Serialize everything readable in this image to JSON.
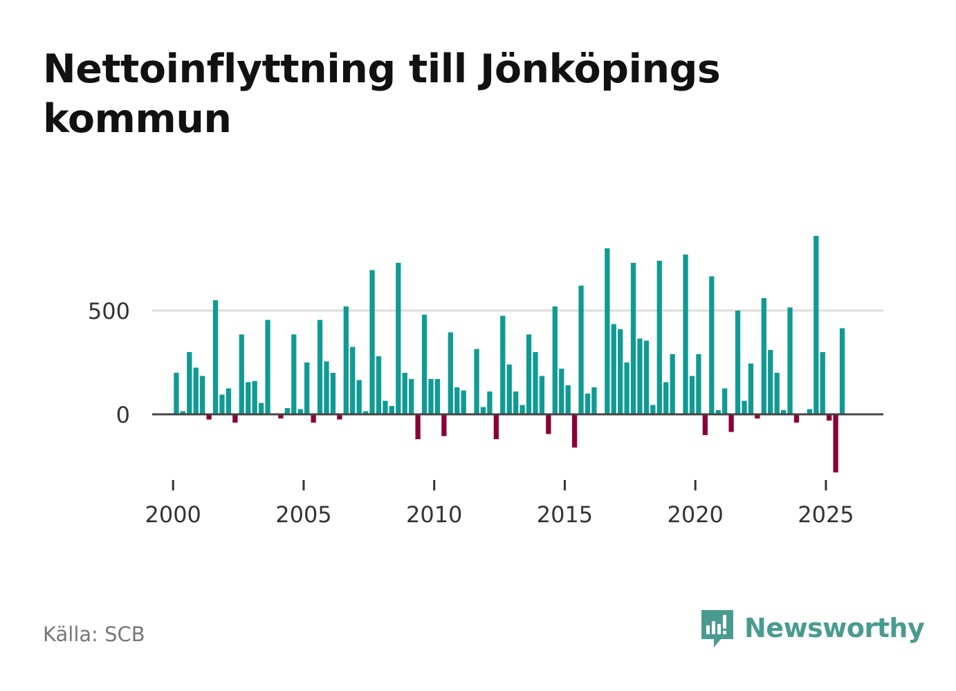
{
  "title": "Nettoinflyttning till Jönköpings kommun",
  "source": "Källa: SCB",
  "brand": "Newsworthy",
  "colors": {
    "positive": "#0f9b94",
    "negative": "#8a0036",
    "grid": "#dddddd",
    "axis": "#444444"
  },
  "chart_data": {
    "type": "bar",
    "title": "Nettoinflyttning till Jönköpings kommun",
    "xlabel": "",
    "ylabel": "",
    "ylim": [
      -340,
      880
    ],
    "yticks": [
      0,
      500
    ],
    "xticks": [
      2000,
      2005,
      2010,
      2015,
      2020,
      2025
    ],
    "xlim": [
      1999.2,
      2027.2
    ],
    "grid": true,
    "legend": "none",
    "period": "quarterly",
    "start": [
      2000,
      1
    ],
    "values": [
      200,
      15,
      300,
      225,
      185,
      -25,
      550,
      95,
      125,
      -40,
      385,
      155,
      160,
      55,
      455,
      0,
      -20,
      30,
      385,
      25,
      250,
      -40,
      455,
      255,
      200,
      -25,
      520,
      325,
      165,
      15,
      695,
      280,
      65,
      40,
      730,
      200,
      170,
      -120,
      480,
      170,
      170,
      -105,
      395,
      130,
      115,
      0,
      315,
      35,
      110,
      -120,
      475,
      240,
      110,
      45,
      385,
      300,
      185,
      -95,
      520,
      220,
      140,
      -160,
      620,
      100,
      130,
      0,
      800,
      435,
      410,
      250,
      730,
      365,
      355,
      45,
      740,
      155,
      290,
      0,
      770,
      185,
      290,
      -100,
      665,
      20,
      125,
      -85,
      500,
      65,
      245,
      -20,
      560,
      310,
      200,
      20,
      515,
      -40,
      0,
      25,
      860,
      300,
      -30,
      -280,
      415
    ]
  }
}
